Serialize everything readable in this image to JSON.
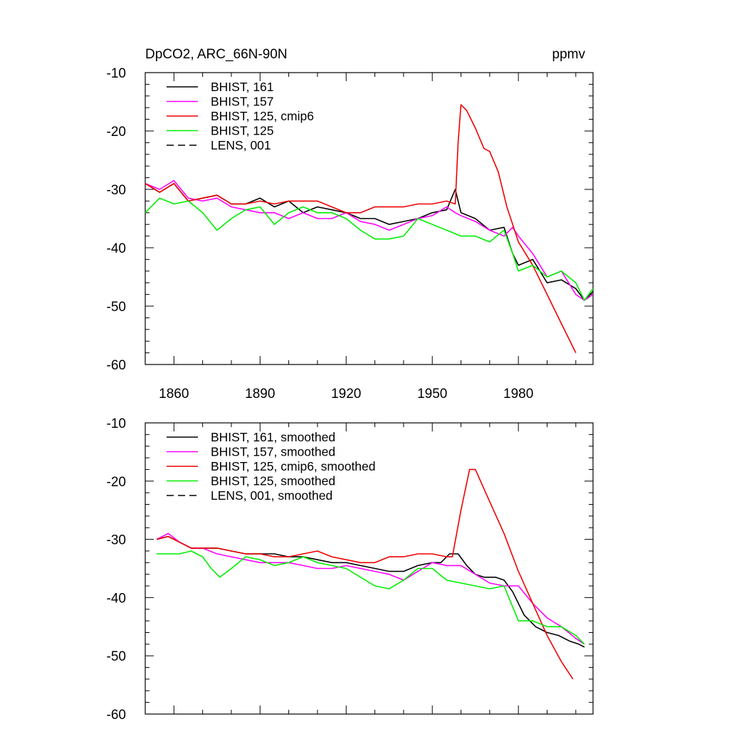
{
  "chart_data": [
    {
      "id": "raw",
      "type": "line",
      "title": "DpCO2, ARC_66N-90N",
      "units": "ppmv",
      "xlim": [
        1850,
        2006
      ],
      "ylim": [
        -60,
        -10
      ],
      "xticks": [
        1860,
        1890,
        1920,
        1950,
        1980
      ],
      "xtick_labels": [
        "1860",
        "1890",
        "1920",
        "1950",
        "1980"
      ],
      "show_xtick_labels": true,
      "yticks": [
        -60,
        -50,
        -40,
        -30,
        -20,
        -10
      ],
      "ytick_labels": [
        "-60",
        "-50",
        "-40",
        "-30",
        "-20",
        "-10"
      ],
      "legend_position": "top-left",
      "series": [
        {
          "name": "BHIST, 161",
          "color": "#000000",
          "dash": "solid",
          "x": [
            1850,
            1855,
            1860,
            1865,
            1870,
            1875,
            1880,
            1885,
            1890,
            1895,
            1900,
            1905,
            1910,
            1915,
            1920,
            1925,
            1930,
            1935,
            1940,
            1945,
            1950,
            1955,
            1958,
            1960,
            1965,
            1970,
            1975,
            1978,
            1980,
            1985,
            1990,
            1995,
            2000,
            2003,
            2006
          ],
          "y": [
            -29,
            -30.5,
            -29,
            -32,
            -31.5,
            -31,
            -32.5,
            -32.5,
            -31.5,
            -33,
            -32,
            -34,
            -33,
            -33.5,
            -34,
            -35,
            -35,
            -36,
            -35.5,
            -35,
            -34,
            -33.5,
            -30,
            -34,
            -35,
            -37,
            -36.5,
            -41,
            -43,
            -42,
            -46,
            -45.5,
            -47,
            -49,
            -47.5
          ]
        },
        {
          "name": "BHIST, 157",
          "color": "#ff00ff",
          "dash": "solid",
          "x": [
            1850,
            1855,
            1860,
            1865,
            1870,
            1875,
            1880,
            1885,
            1890,
            1895,
            1900,
            1905,
            1910,
            1915,
            1920,
            1925,
            1930,
            1935,
            1940,
            1945,
            1950,
            1955,
            1958,
            1960,
            1965,
            1970,
            1975,
            1978,
            1980,
            1985,
            1990,
            1995,
            2000,
            2003,
            2006
          ],
          "y": [
            -29,
            -30,
            -28.5,
            -31.5,
            -32,
            -31.5,
            -33,
            -33.5,
            -34,
            -34,
            -35,
            -34,
            -35,
            -35,
            -34,
            -35.5,
            -36,
            -37,
            -36,
            -35,
            -34.5,
            -33,
            -34,
            -34.5,
            -35.5,
            -37,
            -38,
            -36.5,
            -38,
            -41,
            -45,
            -44,
            -48,
            -49,
            -48
          ]
        },
        {
          "name": "BHIST, 125, cmip6",
          "color": "#ee0000",
          "dash": "solid",
          "x": [
            1850,
            1855,
            1860,
            1865,
            1870,
            1875,
            1880,
            1885,
            1890,
            1895,
            1900,
            1905,
            1910,
            1915,
            1920,
            1925,
            1930,
            1935,
            1940,
            1945,
            1950,
            1955,
            1958,
            1959,
            1960,
            1962,
            1965,
            1968,
            1970,
            1973,
            1976,
            1980,
            1985,
            1990,
            1995,
            2000
          ],
          "y": [
            -29,
            -30.5,
            -29,
            -32,
            -31.5,
            -31,
            -32.5,
            -32.5,
            -32,
            -32.5,
            -32,
            -32,
            -32,
            -33,
            -34,
            -34,
            -33,
            -33,
            -33,
            -32.5,
            -32.5,
            -32,
            -32.5,
            -22,
            -15.5,
            -16.5,
            -19.5,
            -23,
            -23.5,
            -27,
            -33,
            -39,
            -43,
            -48,
            -53,
            -58
          ]
        },
        {
          "name": "BHIST, 125",
          "color": "#00ee00",
          "dash": "solid",
          "x": [
            1850,
            1855,
            1860,
            1865,
            1870,
            1875,
            1880,
            1885,
            1890,
            1895,
            1900,
            1905,
            1910,
            1915,
            1920,
            1925,
            1930,
            1935,
            1940,
            1945,
            1950,
            1955,
            1960,
            1965,
            1970,
            1975,
            1978,
            1980,
            1985,
            1990,
            1995,
            2000,
            2003,
            2006
          ],
          "y": [
            -34,
            -31.5,
            -32.5,
            -32,
            -34,
            -37,
            -35,
            -33.5,
            -33,
            -36,
            -34,
            -33,
            -34,
            -34,
            -35,
            -37,
            -38.5,
            -38.5,
            -38,
            -35,
            -36,
            -37,
            -38,
            -38,
            -39,
            -37,
            -41,
            -44,
            -43,
            -45,
            -44,
            -46,
            -49,
            -47
          ]
        }
      ]
    },
    {
      "id": "smoothed",
      "type": "line",
      "title": "",
      "units": "",
      "xlim": [
        1850,
        2006
      ],
      "ylim": [
        -60,
        -10
      ],
      "xticks": [
        1860,
        1890,
        1920,
        1950,
        1980
      ],
      "xtick_labels": [
        "1860",
        "1890",
        "1920",
        "1950",
        "1980"
      ],
      "show_xtick_labels": false,
      "yticks": [
        -60,
        -50,
        -40,
        -30,
        -20,
        -10
      ],
      "ytick_labels": [
        "-60",
        "-50",
        "-40",
        "-30",
        "-20",
        "-10"
      ],
      "legend_position": "top-left",
      "series": [
        {
          "name": "BHIST, 161, smoothed",
          "color": "#000000",
          "dash": "solid",
          "x": [
            1854,
            1858,
            1862,
            1866,
            1870,
            1875,
            1880,
            1885,
            1890,
            1895,
            1900,
            1905,
            1910,
            1915,
            1920,
            1925,
            1930,
            1935,
            1940,
            1945,
            1950,
            1953,
            1956,
            1959,
            1962,
            1965,
            1968,
            1972,
            1975,
            1978,
            1982,
            1986,
            1990,
            1994,
            1998,
            2001,
            2003
          ],
          "y": [
            -30,
            -29.5,
            -30.5,
            -31.5,
            -31.5,
            -31.5,
            -32,
            -32.5,
            -32.5,
            -32.5,
            -33,
            -33,
            -33.5,
            -34,
            -34,
            -34.5,
            -35,
            -35.5,
            -35.5,
            -34.5,
            -34,
            -34,
            -32.5,
            -32.5,
            -34.5,
            -36,
            -36.5,
            -36.5,
            -37,
            -39,
            -43,
            -45,
            -46,
            -46.5,
            -47.5,
            -48,
            -48.5
          ]
        },
        {
          "name": "BHIST, 157, smoothed",
          "color": "#ff00ff",
          "dash": "solid",
          "x": [
            1854,
            1858,
            1862,
            1866,
            1870,
            1875,
            1880,
            1885,
            1890,
            1895,
            1900,
            1905,
            1910,
            1915,
            1920,
            1925,
            1930,
            1935,
            1940,
            1945,
            1950,
            1955,
            1960,
            1965,
            1970,
            1975,
            1980,
            1985,
            1990,
            1995,
            2000,
            2003
          ],
          "y": [
            -30,
            -29,
            -30.5,
            -31.5,
            -31.5,
            -32.5,
            -33,
            -33.5,
            -34,
            -34,
            -34,
            -34.5,
            -35,
            -35,
            -34.5,
            -35,
            -35.5,
            -36,
            -37,
            -35.5,
            -34,
            -34.5,
            -34.5,
            -36,
            -37.5,
            -38,
            -38,
            -41,
            -43.5,
            -45,
            -47,
            -48
          ]
        },
        {
          "name": "BHIST, 125, cmip6, smoothed",
          "color": "#ee0000",
          "dash": "solid",
          "x": [
            1854,
            1858,
            1862,
            1866,
            1870,
            1875,
            1880,
            1885,
            1890,
            1895,
            1900,
            1905,
            1910,
            1915,
            1920,
            1925,
            1930,
            1935,
            1940,
            1945,
            1950,
            1955,
            1957,
            1960,
            1963,
            1965,
            1970,
            1975,
            1980,
            1985,
            1990,
            1995,
            1999
          ],
          "y": [
            -30,
            -29.5,
            -30.5,
            -31.5,
            -31.5,
            -31.5,
            -32,
            -32.5,
            -32.5,
            -33,
            -33,
            -32.5,
            -32,
            -33,
            -33.5,
            -34,
            -34,
            -33,
            -33,
            -32.5,
            -32.5,
            -33,
            -33,
            -25,
            -18,
            -18,
            -23.5,
            -29,
            -35.5,
            -41,
            -46.5,
            -51,
            -54
          ]
        },
        {
          "name": "BHIST, 125, smoothed",
          "color": "#00ee00",
          "dash": "solid",
          "x": [
            1854,
            1858,
            1862,
            1866,
            1870,
            1873,
            1876,
            1880,
            1885,
            1890,
            1895,
            1900,
            1905,
            1910,
            1915,
            1920,
            1925,
            1930,
            1935,
            1940,
            1945,
            1950,
            1955,
            1960,
            1965,
            1970,
            1975,
            1980,
            1985,
            1990,
            1995,
            2000,
            2003
          ],
          "y": [
            -32.5,
            -32.5,
            -32.5,
            -32,
            -33,
            -35,
            -36.5,
            -35,
            -33,
            -33.5,
            -34.5,
            -34,
            -33,
            -34,
            -34.5,
            -35,
            -36.5,
            -38,
            -38.5,
            -37,
            -35,
            -35,
            -37,
            -37.5,
            -38,
            -38.5,
            -38,
            -44,
            -44,
            -45,
            -45,
            -46.5,
            -48
          ]
        }
      ]
    }
  ],
  "legends": [
    {
      "entries": [
        {
          "label": "BHIST, 161",
          "color": "#000000",
          "dash": "solid"
        },
        {
          "label": "BHIST, 157",
          "color": "#ff00ff",
          "dash": "solid"
        },
        {
          "label": "BHIST, 125, cmip6",
          "color": "#ee0000",
          "dash": "solid"
        },
        {
          "label": "BHIST, 125",
          "color": "#00ee00",
          "dash": "solid"
        },
        {
          "label": "LENS, 001",
          "color": "#000000",
          "dash": "dashed"
        }
      ]
    },
    {
      "entries": [
        {
          "label": "BHIST, 161, smoothed",
          "color": "#000000",
          "dash": "solid"
        },
        {
          "label": "BHIST, 157, smoothed",
          "color": "#ff00ff",
          "dash": "solid"
        },
        {
          "label": "BHIST, 125, cmip6, smoothed",
          "color": "#ee0000",
          "dash": "solid"
        },
        {
          "label": "BHIST, 125, smoothed",
          "color": "#00ee00",
          "dash": "solid"
        },
        {
          "label": "LENS, 001, smoothed",
          "color": "#000000",
          "dash": "dashed"
        }
      ]
    }
  ]
}
